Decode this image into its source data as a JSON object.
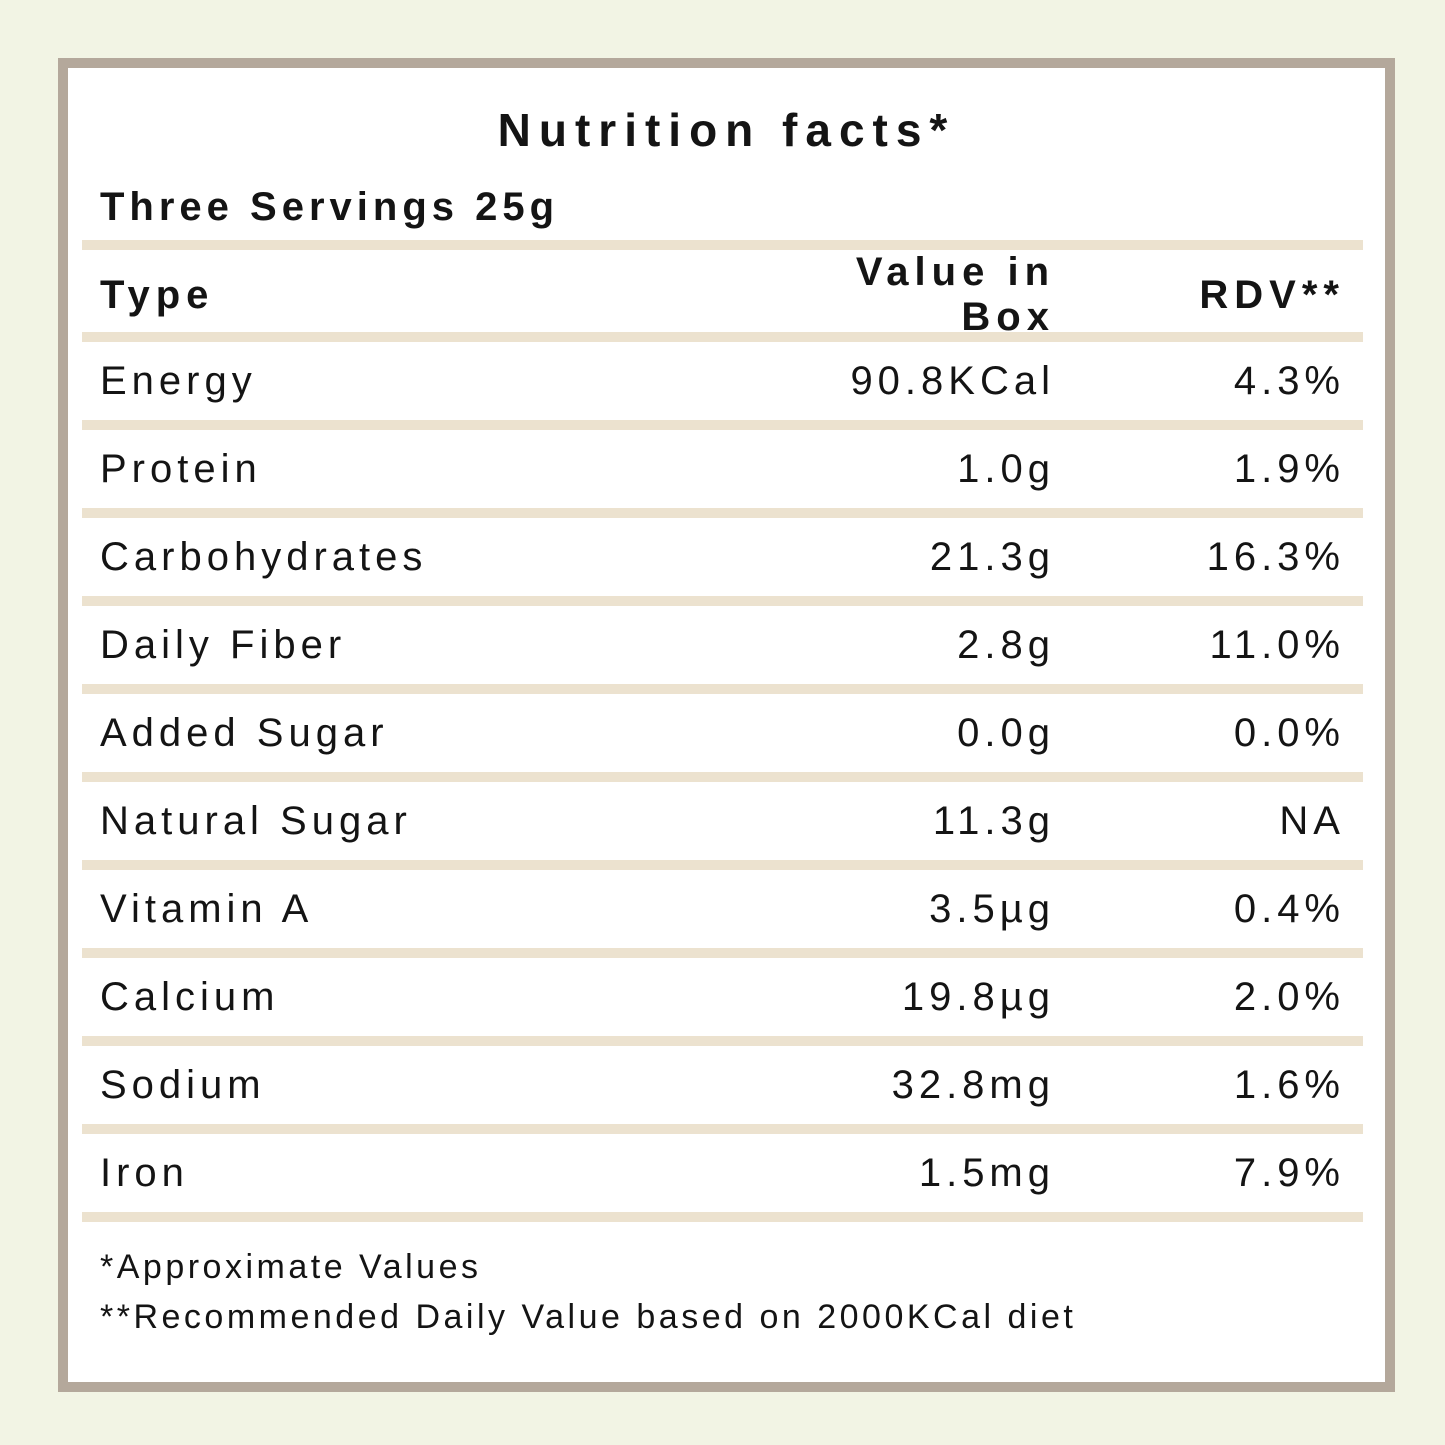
{
  "page": {
    "background_color": "#f2f4e4"
  },
  "card": {
    "background_color": "#ffffff",
    "border_color": "#b4a89b",
    "separator_color": "#ece2cf",
    "text_color": "#141414"
  },
  "title": "Nutrition facts*",
  "serving_info": "Three Servings 25g",
  "table": {
    "headers": {
      "type": "Type",
      "value": "Value in Box",
      "rdv": "RDV**"
    },
    "rows": [
      {
        "type": "Energy",
        "value": "90.8KCal",
        "rdv": "4.3%"
      },
      {
        "type": "Protein",
        "value": "1.0g",
        "rdv": "1.9%"
      },
      {
        "type": "Carbohydrates",
        "value": "21.3g",
        "rdv": "16.3%"
      },
      {
        "type": "Daily Fiber",
        "value": "2.8g",
        "rdv": "11.0%"
      },
      {
        "type": "Added Sugar",
        "value": "0.0g",
        "rdv": "0.0%"
      },
      {
        "type": "Natural Sugar",
        "value": "11.3g",
        "rdv": "NA"
      },
      {
        "type": "Vitamin A",
        "value": "3.5µg",
        "rdv": "0.4%"
      },
      {
        "type": "Calcium",
        "value": "19.8µg",
        "rdv": "2.0%"
      },
      {
        "type": "Sodium",
        "value": "32.8mg",
        "rdv": "1.6%"
      },
      {
        "type": "Iron",
        "value": "1.5mg",
        "rdv": "7.9%"
      }
    ]
  },
  "footnotes": [
    "*Approximate Values",
    "**Recommended Daily Value based on 2000KCal diet"
  ]
}
